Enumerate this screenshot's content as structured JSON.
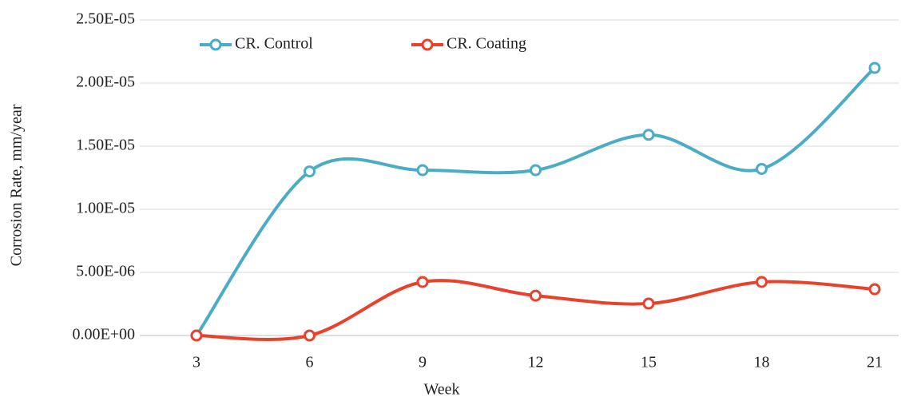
{
  "chart_data": {
    "type": "line",
    "x_label": "Week",
    "y_label": "Corrosion Rate, mm/year",
    "categories": [
      "3",
      "6",
      "9",
      "12",
      "15",
      "18",
      "21"
    ],
    "series": [
      {
        "name": "CR. Control",
        "color": "#4bacc6",
        "values": [
          0,
          1.3e-05,
          1.31e-05,
          1.31e-05,
          1.59e-05,
          1.32e-05,
          2.12e-05
        ]
      },
      {
        "name": "CR. Coating",
        "color": "#e8412c",
        "values": [
          0,
          0,
          4.24e-06,
          3.16e-06,
          2.53e-06,
          4.24e-06,
          3.67e-06
        ]
      }
    ],
    "ylim": [
      0,
      2.5e-05
    ],
    "yticks": [
      {
        "value": 0,
        "label": "0.00E+00"
      },
      {
        "value": 5e-06,
        "label": "5.00E-06"
      },
      {
        "value": 1e-05,
        "label": "1.00E-05"
      },
      {
        "value": 1.5e-05,
        "label": "1.50E-05"
      },
      {
        "value": 2e-05,
        "label": "2.00E-05"
      },
      {
        "value": 2.5e-05,
        "label": "2.50E-05"
      }
    ],
    "grid": true,
    "smooth": true,
    "legend": "upper left"
  }
}
